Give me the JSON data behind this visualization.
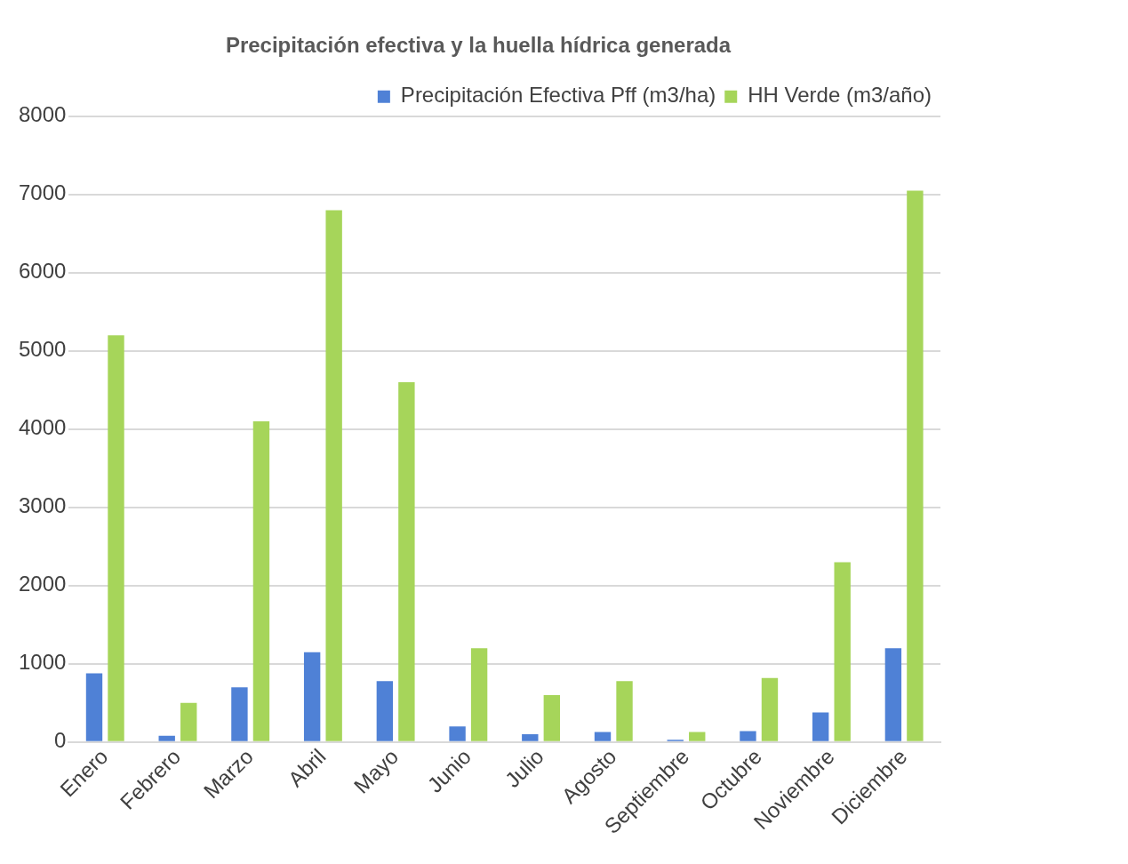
{
  "chart_data": {
    "type": "bar",
    "title": "Precipitación efectiva y la huella hídrica generada",
    "categories": [
      "Enero",
      "Febrero",
      "Marzo",
      "Abril",
      "Mayo",
      "Junio",
      "Julio",
      "Agosto",
      "Septiembre",
      "Octubre",
      "Noviembre",
      "Diciembre"
    ],
    "series": [
      {
        "name": "Precipitación Efectiva Pff (m3/ha)",
        "color": "#4f81d6",
        "values": [
          880,
          80,
          700,
          1150,
          780,
          200,
          100,
          130,
          30,
          140,
          380,
          1200
        ]
      },
      {
        "name": "HH Verde (m3/año)",
        "color": "#a6d55a",
        "values": [
          5200,
          500,
          4100,
          6800,
          4600,
          1200,
          600,
          780,
          130,
          820,
          2300,
          7050
        ]
      }
    ],
    "ylim": [
      0,
      8000
    ],
    "yticks": [
      0,
      1000,
      2000,
      3000,
      4000,
      5000,
      6000,
      7000,
      8000
    ],
    "grid": "y",
    "legend": "top"
  }
}
